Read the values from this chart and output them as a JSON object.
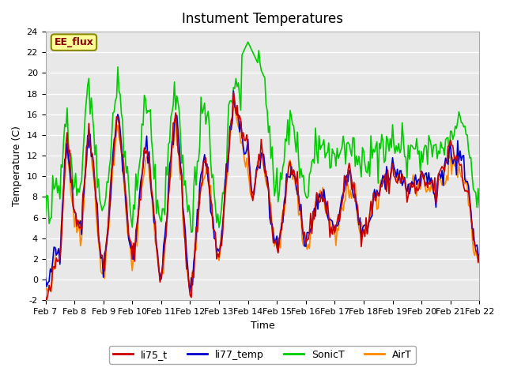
{
  "title": "Instument Temperatures",
  "xlabel": "Time",
  "ylabel": "Temperature (C)",
  "ylim": [
    -2,
    24
  ],
  "xlim": [
    0,
    360
  ],
  "background_color": "#ffffff",
  "plot_bg_color": "#e8e8e8",
  "grid_color": "#ffffff",
  "annotation_text": "EE_flux",
  "annotation_bg": "#ffff99",
  "annotation_border": "#888800",
  "series": {
    "li75_t": {
      "color": "#cc0000",
      "lw": 1.2
    },
    "li77_temp": {
      "color": "#0000cc",
      "lw": 1.2
    },
    "SonicT": {
      "color": "#00cc00",
      "lw": 1.2
    },
    "AirT": {
      "color": "#ff8800",
      "lw": 1.2
    }
  },
  "xtick_labels": [
    "Feb 7",
    "Feb 8",
    "Feb 9",
    "Feb 10",
    "Feb 11",
    "Feb 12",
    "Feb 13",
    "Feb 14",
    "Feb 15",
    "Feb 16",
    "Feb 17",
    "Feb 18",
    "Feb 19",
    "Feb 20",
    "Feb 21",
    "Feb 22"
  ],
  "xtick_positions": [
    0,
    24,
    48,
    72,
    96,
    120,
    144,
    168,
    192,
    216,
    240,
    264,
    288,
    312,
    336,
    360
  ],
  "ytick_labels": [
    "-2",
    "0",
    "2",
    "4",
    "6",
    "8",
    "10",
    "12",
    "14",
    "16",
    "18",
    "20",
    "22",
    "24"
  ],
  "ytick_values": [
    -2,
    0,
    2,
    4,
    6,
    8,
    10,
    12,
    14,
    16,
    18,
    20,
    22,
    24
  ],
  "legend_entries": [
    "li75_t",
    "li77_temp",
    "SonicT",
    "AirT"
  ]
}
